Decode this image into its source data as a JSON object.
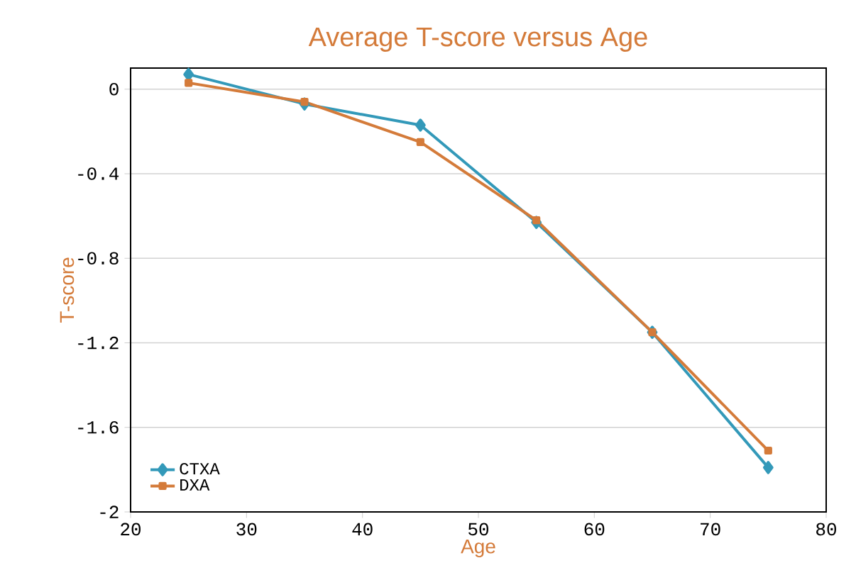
{
  "chart_data": {
    "type": "line",
    "title": "Average T-score versus Age",
    "xlabel": "Age",
    "ylabel": "T-score",
    "x": [
      25,
      35,
      45,
      55,
      65,
      75
    ],
    "series": [
      {
        "name": "CTXA",
        "color": "#3399b9",
        "marker": "diamond",
        "values": [
          0.07,
          -0.07,
          -0.17,
          -0.63,
          -1.15,
          -1.79
        ]
      },
      {
        "name": "DXA",
        "color": "#d47b3a",
        "marker": "square",
        "values": [
          0.03,
          -0.06,
          -0.25,
          -0.62,
          -1.15,
          -1.71
        ]
      }
    ],
    "xlim": [
      20,
      80
    ],
    "xticks": [
      20,
      30,
      40,
      50,
      60,
      70,
      80
    ],
    "ylim": [
      -2,
      0.1
    ],
    "yticks": [
      0,
      -0.4,
      -0.8,
      -1.2,
      -1.6,
      -2
    ],
    "grid": "y",
    "legend": "bottom left",
    "line_style": "solid"
  }
}
